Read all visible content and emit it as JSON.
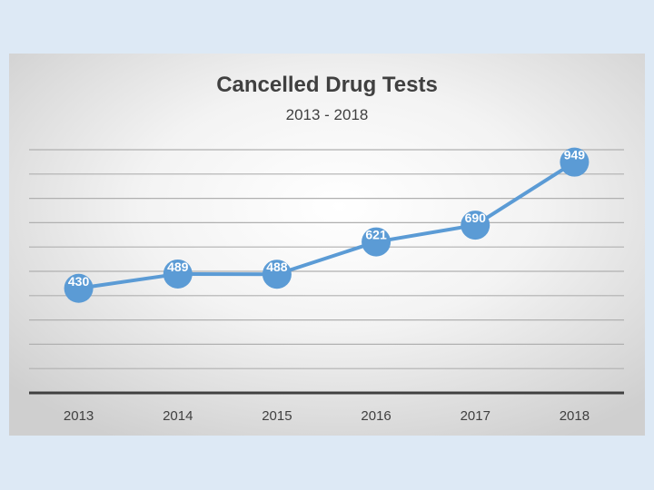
{
  "chart_data": {
    "type": "line",
    "title": "Cancelled Drug Tests",
    "subtitle": "2013 - 2018",
    "xlabel": "",
    "ylabel": "",
    "categories": [
      "2013",
      "2014",
      "2015",
      "2016",
      "2017",
      "2018"
    ],
    "series": [
      {
        "name": "Cancelled Drug Tests",
        "values": [
          430,
          489,
          488,
          621,
          690,
          949
        ]
      }
    ],
    "data_labels": [
      "430",
      "489",
      "488",
      "621",
      "690",
      "949"
    ],
    "ylim": [
      0,
      1100
    ],
    "grid": true,
    "legend": "none",
    "colors": {
      "line": "#5b9bd5",
      "marker": "#5b9bd5",
      "label_text": "#ffffff",
      "axis": "#404040",
      "grid": "#b0b0b0"
    }
  }
}
